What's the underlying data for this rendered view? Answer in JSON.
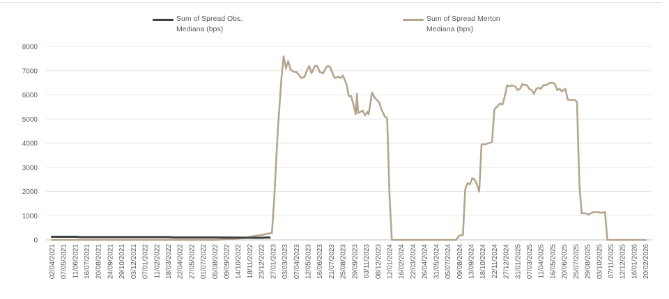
{
  "chart_data": {
    "type": "line",
    "title": "",
    "xlabel": "",
    "ylabel": "",
    "ylim": [
      0,
      8000
    ],
    "grid": true,
    "legend_position": "top",
    "y_ticks": [
      0,
      1000,
      2000,
      3000,
      4000,
      5000,
      6000,
      7000,
      8000
    ],
    "x_tick_labels": [
      "02/04/2021",
      "07/05/2021",
      "11/06/2021",
      "16/07/2021",
      "20/08/2021",
      "24/09/2021",
      "29/10/2021",
      "03/12/2021",
      "07/01/2022",
      "11/02/2022",
      "18/03/2022",
      "22/04/2022",
      "27/05/2022",
      "01/07/2022",
      "05/08/2022",
      "09/09/2022",
      "14/10/2022",
      "18/11/2022",
      "23/12/2022",
      "27/01/2023",
      "03/03/2023",
      "07/04/2023",
      "12/05/2023",
      "16/06/2023",
      "21/07/2023",
      "25/08/2023",
      "29/09/2023",
      "03/11/2023",
      "08/12/2023",
      "12/01/2024",
      "16/02/2024",
      "22/03/2024",
      "26/04/2024",
      "31/05/2024",
      "05/07/2024",
      "09/08/2024",
      "13/09/2024",
      "18/10/2024",
      "22/11/2024",
      "27/12/2024",
      "31/01/2025",
      "07/03/2025",
      "11/04/2025",
      "16/05/2025",
      "20/06/2025",
      "25/07/2025",
      "29/08/2025",
      "03/10/2025",
      "07/11/2025",
      "12/12/2025",
      "16/01/2026",
      "20/02/2026"
    ],
    "series": [
      {
        "name": "Sum of Spread Obs. Mediana (bps)",
        "color": "#404040",
        "points": [
          [
            0,
            130
          ],
          [
            2,
            130
          ],
          [
            2.5,
            115
          ],
          [
            10,
            115
          ],
          [
            10.5,
            100
          ],
          [
            14,
            100
          ],
          [
            16,
            95
          ],
          [
            17,
            90
          ],
          [
            18,
            85
          ],
          [
            18.5,
            100
          ],
          [
            18.7,
            95
          ]
        ]
      },
      {
        "name": "Sum of Spread Merton Mediana (bps)",
        "color": "#b5a58c",
        "points": [
          [
            0,
            0
          ],
          [
            14,
            0
          ],
          [
            15,
            30
          ],
          [
            16,
            60
          ],
          [
            16.5,
            80
          ],
          [
            17,
            120
          ],
          [
            17.5,
            170
          ],
          [
            18,
            200
          ],
          [
            18.5,
            260
          ],
          [
            18.9,
            280
          ],
          [
            19.1,
            1700
          ],
          [
            19.4,
            4500
          ],
          [
            19.7,
            6600
          ],
          [
            19.9,
            7600
          ],
          [
            20.1,
            7100
          ],
          [
            20.3,
            7400
          ],
          [
            20.5,
            7050
          ],
          [
            20.8,
            6950
          ],
          [
            21,
            6950
          ],
          [
            21.2,
            6850
          ],
          [
            21.4,
            6700
          ],
          [
            21.7,
            6750
          ],
          [
            21.9,
            7000
          ],
          [
            22.1,
            7200
          ],
          [
            22.3,
            6900
          ],
          [
            22.6,
            7200
          ],
          [
            22.8,
            7200
          ],
          [
            23,
            6950
          ],
          [
            23.3,
            6900
          ],
          [
            23.5,
            7100
          ],
          [
            23.7,
            7200
          ],
          [
            23.9,
            7150
          ],
          [
            24.1,
            6900
          ],
          [
            24.3,
            6700
          ],
          [
            24.6,
            6750
          ],
          [
            24.8,
            6700
          ],
          [
            25,
            6800
          ],
          [
            25.3,
            6450
          ],
          [
            25.5,
            5950
          ],
          [
            25.7,
            5950
          ],
          [
            25.9,
            5600
          ],
          [
            26.1,
            5200
          ],
          [
            26.2,
            6050
          ],
          [
            26.3,
            5250
          ],
          [
            26.5,
            5300
          ],
          [
            26.7,
            5350
          ],
          [
            26.9,
            5150
          ],
          [
            27.1,
            5300
          ],
          [
            27.2,
            5200
          ],
          [
            27.4,
            5800
          ],
          [
            27.5,
            6100
          ],
          [
            27.7,
            5900
          ],
          [
            27.9,
            5800
          ],
          [
            28.1,
            5700
          ],
          [
            28.3,
            5400
          ],
          [
            28.6,
            5100
          ],
          [
            28.8,
            5050
          ],
          [
            29,
            1800
          ],
          [
            29.2,
            0
          ],
          [
            30,
            0
          ],
          [
            34.3,
            0
          ],
          [
            34.7,
            0
          ],
          [
            35,
            180
          ],
          [
            35.3,
            200
          ],
          [
            35.5,
            2100
          ],
          [
            35.7,
            2350
          ],
          [
            35.9,
            2300
          ],
          [
            36.1,
            2550
          ],
          [
            36.3,
            2500
          ],
          [
            36.5,
            2300
          ],
          [
            36.7,
            2000
          ],
          [
            36.9,
            3950
          ],
          [
            37.2,
            3950
          ],
          [
            37.5,
            4000
          ],
          [
            37.8,
            4050
          ],
          [
            38,
            5400
          ],
          [
            38.2,
            5500
          ],
          [
            38.5,
            5650
          ],
          [
            38.7,
            5600
          ],
          [
            38.9,
            5950
          ],
          [
            39.1,
            6400
          ],
          [
            39.3,
            6350
          ],
          [
            39.5,
            6400
          ],
          [
            39.8,
            6350
          ],
          [
            40,
            6200
          ],
          [
            40.2,
            6250
          ],
          [
            40.4,
            6450
          ],
          [
            40.6,
            6400
          ],
          [
            40.8,
            6400
          ],
          [
            41,
            6250
          ],
          [
            41.2,
            6200
          ],
          [
            41.4,
            6050
          ],
          [
            41.6,
            6250
          ],
          [
            41.8,
            6300
          ],
          [
            42,
            6250
          ],
          [
            42.2,
            6400
          ],
          [
            42.4,
            6400
          ],
          [
            42.6,
            6450
          ],
          [
            42.8,
            6500
          ],
          [
            43,
            6500
          ],
          [
            43.2,
            6450
          ],
          [
            43.4,
            6200
          ],
          [
            43.6,
            6250
          ],
          [
            43.8,
            6150
          ],
          [
            44.1,
            6250
          ],
          [
            44.3,
            5800
          ],
          [
            44.6,
            5800
          ],
          [
            44.9,
            5800
          ],
          [
            45.1,
            5700
          ],
          [
            45.3,
            2300
          ],
          [
            45.5,
            1100
          ],
          [
            45.8,
            1100
          ],
          [
            46.1,
            1050
          ],
          [
            46.5,
            1150
          ],
          [
            46.8,
            1150
          ],
          [
            47.2,
            1120
          ],
          [
            47.5,
            1150
          ],
          [
            47.7,
            0
          ],
          [
            48,
            0
          ],
          [
            51,
            0
          ]
        ]
      }
    ]
  }
}
